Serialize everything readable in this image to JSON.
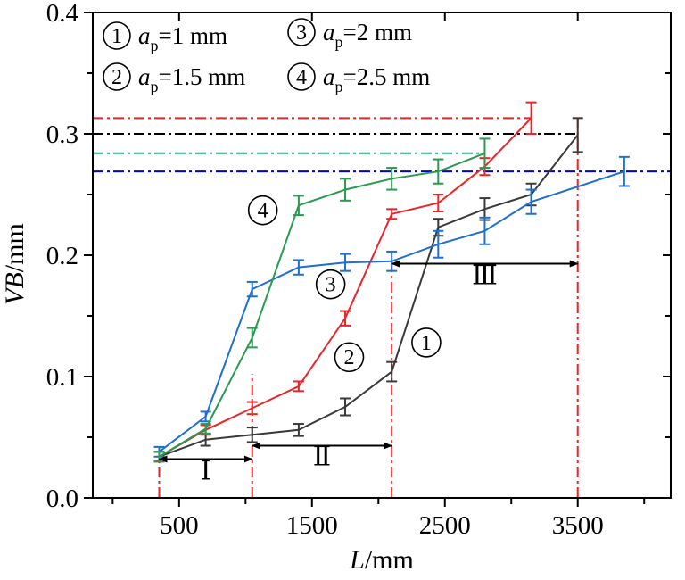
{
  "chart_data": {
    "type": "line",
    "xlabel": "L/mm",
    "ylabel": "VB/mm",
    "xlim": [
      -150,
      4200
    ],
    "ylim": [
      0.0,
      0.4
    ],
    "x_ticks": [
      500,
      1500,
      2500,
      3500
    ],
    "y_ticks": [
      0.0,
      0.1,
      0.2,
      0.3,
      0.4
    ],
    "x_tick_labels": [
      "500",
      "1500",
      "2500",
      "3500"
    ],
    "y_tick_labels": [
      "0.0",
      "0.1",
      "0.2",
      "0.3",
      "0.4"
    ],
    "x_minor_ticks": [
      0,
      1000,
      2000,
      3000,
      4000
    ],
    "grid": false,
    "legend_position": "top-left",
    "series": [
      {
        "marker": "1",
        "name": "a_p=1 mm",
        "color": "#3a3a3a",
        "x": [
          350,
          700,
          1050,
          1400,
          1750,
          2100,
          2450,
          2800,
          3150,
          3500
        ],
        "y": [
          0.034,
          0.048,
          0.052,
          0.056,
          0.075,
          0.104,
          0.223,
          0.238,
          0.25,
          0.299
        ],
        "err": [
          0.004,
          0.005,
          0.006,
          0.005,
          0.007,
          0.008,
          0.007,
          0.009,
          0.009,
          0.014
        ]
      },
      {
        "marker": "2",
        "name": "a_p=1.5 mm",
        "color": "#e8262b",
        "x": [
          350,
          700,
          1050,
          1400,
          1750,
          2100,
          2450,
          2800,
          3150
        ],
        "y": [
          0.034,
          0.056,
          0.074,
          0.092,
          0.148,
          0.234,
          0.243,
          0.273,
          0.313
        ],
        "err": [
          0.004,
          0.004,
          0.005,
          0.004,
          0.006,
          0.004,
          0.007,
          0.007,
          0.013
        ]
      },
      {
        "marker": "3",
        "name": "a_p=2 mm",
        "color": "#1e6fd0",
        "x": [
          350,
          700,
          1050,
          1400,
          1750,
          2100,
          2450,
          2800,
          3150,
          3850
        ],
        "y": [
          0.038,
          0.067,
          0.172,
          0.19,
          0.194,
          0.195,
          0.209,
          0.22,
          0.244,
          0.269
        ],
        "err": [
          0.004,
          0.004,
          0.006,
          0.006,
          0.007,
          0.008,
          0.011,
          0.011,
          0.01,
          0.012
        ]
      },
      {
        "marker": "4",
        "name": "a_p=2.5 mm",
        "color": "#2a9a50",
        "x": [
          350,
          700,
          1050,
          1400,
          1750,
          2100,
          2450,
          2800
        ],
        "y": [
          0.034,
          0.057,
          0.132,
          0.241,
          0.254,
          0.263,
          0.269,
          0.284
        ],
        "err": [
          0.004,
          0.004,
          0.008,
          0.008,
          0.009,
          0.009,
          0.01,
          0.012
        ]
      }
    ],
    "legend": [
      {
        "num": "1",
        "label": "=1 mm"
      },
      {
        "num": "2",
        "label": "=1.5 mm"
      },
      {
        "num": "3",
        "label": "=2 mm"
      },
      {
        "num": "4",
        "label": "=2.5 mm"
      }
    ],
    "legend_symbol": {
      "main": "a",
      "sub": "p"
    },
    "horizontal_refs": [
      {
        "y": 0.313,
        "x_end": 3150,
        "color": "#e8262b"
      },
      {
        "y": 0.3,
        "x_end": 3500,
        "color": "#000000"
      },
      {
        "y": 0.284,
        "x_end": 2800,
        "color": "#20b080"
      },
      {
        "y": 0.269,
        "x_end": 4200,
        "color": "#0000d0"
      }
    ],
    "vertical_refs": [
      {
        "x": 350,
        "y_top": 0.034,
        "color": "#e8262b"
      },
      {
        "x": 1050,
        "y_top": 0.102,
        "color": "#e8262b"
      },
      {
        "x": 2100,
        "y_top": 0.195,
        "color": "#e8262b"
      },
      {
        "x": 3500,
        "y_top": 0.313,
        "color": "#e8262b"
      }
    ],
    "stage_arrows": [
      {
        "label": "Ⅰ",
        "x1": 350,
        "x2": 1050,
        "y": 0.032,
        "label_y": 0.015
      },
      {
        "label": "Ⅱ",
        "x1": 1050,
        "x2": 2100,
        "y": 0.043,
        "label_y": 0.027
      },
      {
        "label": "Ⅲ",
        "x1": 2100,
        "x2": 3500,
        "y": 0.193,
        "label_y": 0.176
      }
    ],
    "curve_labels": [
      {
        "num": "4",
        "x": 1130,
        "y": 0.237
      },
      {
        "num": "3",
        "x": 1640,
        "y": 0.176
      },
      {
        "num": "2",
        "x": 1780,
        "y": 0.116
      },
      {
        "num": "1",
        "x": 2360,
        "y": 0.128
      }
    ]
  }
}
